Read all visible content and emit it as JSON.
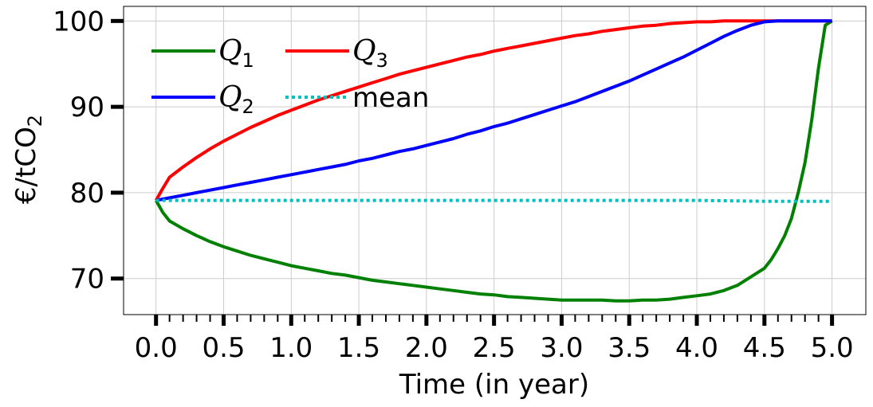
{
  "chart_data": {
    "type": "line",
    "xlabel": "Time (in year)",
    "ylabel": "€/tCO",
    "ylabel_sub": "2",
    "xlim": [
      -0.24,
      5.25
    ],
    "ylim": [
      65.8,
      101.7
    ],
    "x_ticks": [
      0.0,
      0.5,
      1.0,
      1.5,
      2.0,
      2.5,
      3.0,
      3.5,
      4.0,
      4.5,
      5.0
    ],
    "x_tick_labels": [
      "0.0",
      "0.5",
      "1.0",
      "1.5",
      "2.0",
      "2.5",
      "3.0",
      "3.5",
      "4.0",
      "4.5",
      "5.0"
    ],
    "y_ticks": [
      70,
      80,
      90,
      100
    ],
    "y_tick_labels": [
      "70",
      "80",
      "90",
      "100"
    ],
    "grid": true,
    "legend_placement": "top-left",
    "series": [
      {
        "name": "Q",
        "name_sub": "1",
        "color": "#008000",
        "style": "solid",
        "points": [
          [
            0.0,
            79.1
          ],
          [
            0.05,
            77.7
          ],
          [
            0.1,
            76.7
          ],
          [
            0.2,
            75.8
          ],
          [
            0.3,
            75.0
          ],
          [
            0.4,
            74.3
          ],
          [
            0.5,
            73.7
          ],
          [
            0.6,
            73.2
          ],
          [
            0.7,
            72.7
          ],
          [
            0.8,
            72.3
          ],
          [
            0.9,
            71.9
          ],
          [
            1.0,
            71.5
          ],
          [
            1.1,
            71.2
          ],
          [
            1.2,
            70.9
          ],
          [
            1.3,
            70.6
          ],
          [
            1.4,
            70.4
          ],
          [
            1.5,
            70.1
          ],
          [
            1.6,
            69.8
          ],
          [
            1.7,
            69.6
          ],
          [
            1.8,
            69.4
          ],
          [
            1.9,
            69.2
          ],
          [
            2.0,
            69.0
          ],
          [
            2.1,
            68.8
          ],
          [
            2.2,
            68.6
          ],
          [
            2.3,
            68.4
          ],
          [
            2.4,
            68.2
          ],
          [
            2.5,
            68.1
          ],
          [
            2.6,
            67.9
          ],
          [
            2.7,
            67.8
          ],
          [
            2.8,
            67.7
          ],
          [
            2.9,
            67.6
          ],
          [
            3.0,
            67.5
          ],
          [
            3.1,
            67.5
          ],
          [
            3.2,
            67.5
          ],
          [
            3.3,
            67.5
          ],
          [
            3.4,
            67.4
          ],
          [
            3.5,
            67.4
          ],
          [
            3.6,
            67.5
          ],
          [
            3.7,
            67.5
          ],
          [
            3.8,
            67.6
          ],
          [
            3.9,
            67.8
          ],
          [
            4.0,
            68.0
          ],
          [
            4.1,
            68.2
          ],
          [
            4.2,
            68.6
          ],
          [
            4.3,
            69.2
          ],
          [
            4.4,
            70.2
          ],
          [
            4.5,
            71.2
          ],
          [
            4.55,
            72.2
          ],
          [
            4.6,
            73.5
          ],
          [
            4.65,
            75.0
          ],
          [
            4.7,
            77.0
          ],
          [
            4.75,
            80.0
          ],
          [
            4.8,
            83.5
          ],
          [
            4.85,
            88.5
          ],
          [
            4.9,
            94.5
          ],
          [
            4.95,
            99.5
          ],
          [
            5.0,
            100.0
          ]
        ]
      },
      {
        "name": "Q",
        "name_sub": "3",
        "color": "#ff0000",
        "style": "solid",
        "points": [
          [
            0.0,
            79.1
          ],
          [
            0.05,
            80.5
          ],
          [
            0.1,
            81.8
          ],
          [
            0.2,
            83.0
          ],
          [
            0.3,
            84.1
          ],
          [
            0.4,
            85.1
          ],
          [
            0.5,
            86.0
          ],
          [
            0.6,
            86.8
          ],
          [
            0.7,
            87.6
          ],
          [
            0.8,
            88.3
          ],
          [
            0.9,
            89.0
          ],
          [
            1.0,
            89.6
          ],
          [
            1.1,
            90.2
          ],
          [
            1.2,
            90.8
          ],
          [
            1.3,
            91.3
          ],
          [
            1.4,
            91.8
          ],
          [
            1.5,
            92.3
          ],
          [
            1.6,
            92.8
          ],
          [
            1.7,
            93.3
          ],
          [
            1.8,
            93.8
          ],
          [
            1.9,
            94.2
          ],
          [
            2.0,
            94.6
          ],
          [
            2.1,
            95.0
          ],
          [
            2.2,
            95.4
          ],
          [
            2.3,
            95.8
          ],
          [
            2.4,
            96.1
          ],
          [
            2.5,
            96.5
          ],
          [
            2.6,
            96.8
          ],
          [
            2.7,
            97.1
          ],
          [
            2.8,
            97.4
          ],
          [
            2.9,
            97.7
          ],
          [
            3.0,
            98.0
          ],
          [
            3.1,
            98.3
          ],
          [
            3.2,
            98.5
          ],
          [
            3.3,
            98.8
          ],
          [
            3.4,
            99.0
          ],
          [
            3.5,
            99.2
          ],
          [
            3.6,
            99.4
          ],
          [
            3.7,
            99.5
          ],
          [
            3.8,
            99.7
          ],
          [
            3.9,
            99.8
          ],
          [
            4.0,
            99.9
          ],
          [
            4.1,
            99.9
          ],
          [
            4.2,
            100.0
          ],
          [
            4.3,
            100.0
          ],
          [
            4.4,
            100.0
          ],
          [
            4.5,
            100.0
          ],
          [
            4.6,
            100.0
          ],
          [
            4.7,
            100.0
          ],
          [
            4.8,
            100.0
          ],
          [
            4.9,
            100.0
          ],
          [
            5.0,
            100.0
          ]
        ]
      },
      {
        "name": "Q",
        "name_sub": "2",
        "color": "#0000ff",
        "style": "solid",
        "points": [
          [
            0.0,
            79.1
          ],
          [
            0.1,
            79.4
          ],
          [
            0.2,
            79.7
          ],
          [
            0.3,
            80.0
          ],
          [
            0.4,
            80.3
          ],
          [
            0.5,
            80.6
          ],
          [
            0.6,
            80.9
          ],
          [
            0.7,
            81.2
          ],
          [
            0.8,
            81.5
          ],
          [
            0.9,
            81.8
          ],
          [
            1.0,
            82.1
          ],
          [
            1.1,
            82.4
          ],
          [
            1.2,
            82.7
          ],
          [
            1.3,
            83.0
          ],
          [
            1.4,
            83.3
          ],
          [
            1.5,
            83.7
          ],
          [
            1.6,
            84.0
          ],
          [
            1.7,
            84.4
          ],
          [
            1.8,
            84.8
          ],
          [
            1.9,
            85.1
          ],
          [
            2.0,
            85.5
          ],
          [
            2.1,
            85.9
          ],
          [
            2.2,
            86.3
          ],
          [
            2.3,
            86.8
          ],
          [
            2.4,
            87.2
          ],
          [
            2.5,
            87.7
          ],
          [
            2.6,
            88.1
          ],
          [
            2.7,
            88.6
          ],
          [
            2.8,
            89.1
          ],
          [
            2.9,
            89.6
          ],
          [
            3.0,
            90.1
          ],
          [
            3.1,
            90.6
          ],
          [
            3.2,
            91.2
          ],
          [
            3.3,
            91.8
          ],
          [
            3.4,
            92.4
          ],
          [
            3.5,
            93.0
          ],
          [
            3.6,
            93.7
          ],
          [
            3.7,
            94.4
          ],
          [
            3.8,
            95.1
          ],
          [
            3.9,
            95.8
          ],
          [
            4.0,
            96.6
          ],
          [
            4.1,
            97.4
          ],
          [
            4.2,
            98.2
          ],
          [
            4.3,
            98.9
          ],
          [
            4.4,
            99.5
          ],
          [
            4.5,
            99.9
          ],
          [
            4.6,
            100.0
          ],
          [
            4.7,
            100.0
          ],
          [
            4.8,
            100.0
          ],
          [
            4.9,
            100.0
          ],
          [
            5.0,
            100.0
          ]
        ]
      },
      {
        "name": "mean",
        "name_sub": "",
        "color": "#00bfbf",
        "style": "dotted",
        "points": [
          [
            0.0,
            79.1
          ],
          [
            0.5,
            79.1
          ],
          [
            1.0,
            79.1
          ],
          [
            1.5,
            79.1
          ],
          [
            2.0,
            79.1
          ],
          [
            2.5,
            79.1
          ],
          [
            3.0,
            79.1
          ],
          [
            3.5,
            79.1
          ],
          [
            4.0,
            79.1
          ],
          [
            4.5,
            79.0
          ],
          [
            5.0,
            79.0
          ]
        ]
      }
    ]
  }
}
